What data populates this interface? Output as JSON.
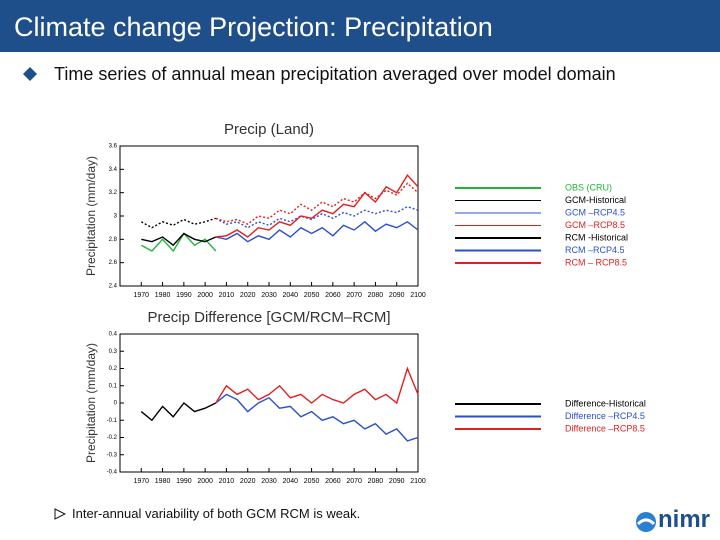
{
  "title": "Climate change Projection: Precipitation",
  "bullet": "Time series of annual mean precipitation averaged over model domain",
  "note": "Inter-annual variability of both GCM RCM is weak.",
  "logo": "nimr",
  "chart_data": [
    {
      "type": "line",
      "title": "Precip (Land)",
      "y_label": "Precipitation (mm/day)",
      "x": [
        1970,
        1975,
        1980,
        1985,
        1990,
        1995,
        2000,
        2005,
        2010,
        2015,
        2020,
        2025,
        2030,
        2035,
        2040,
        2045,
        2050,
        2055,
        2060,
        2065,
        2070,
        2075,
        2080,
        2085,
        2090,
        2095,
        2100
      ],
      "xlim": [
        1960,
        2100
      ],
      "xticks": [
        1970,
        1980,
        1990,
        2000,
        2010,
        2020,
        2030,
        2040,
        2050,
        2060,
        2070,
        2080,
        2090,
        2100
      ],
      "ylim": [
        2.4,
        3.6
      ],
      "yticks": [
        2.4,
        2.6,
        2.8,
        3,
        3.2,
        3.4,
        3.6
      ],
      "series": [
        {
          "name": "OBS (CRU)",
          "color": "#22b53a",
          "style": "solid",
          "values": [
            2.75,
            2.7,
            2.8,
            2.7,
            2.85,
            2.75,
            2.8,
            2.7,
            null,
            null,
            null,
            null,
            null,
            null,
            null,
            null,
            null,
            null,
            null,
            null,
            null,
            null,
            null,
            null,
            null,
            null,
            null
          ]
        },
        {
          "name": "GCM-Historical",
          "color": "#000000",
          "style": "dotted",
          "values": [
            2.95,
            2.9,
            2.95,
            2.92,
            2.97,
            2.93,
            2.95,
            2.98,
            null,
            null,
            null,
            null,
            null,
            null,
            null,
            null,
            null,
            null,
            null,
            null,
            null,
            null,
            null,
            null,
            null,
            null,
            null
          ]
        },
        {
          "name": "GCM –RCP4.5",
          "color": "#2a4fd0",
          "style": "dotted",
          "values": [
            null,
            null,
            null,
            null,
            null,
            null,
            null,
            2.98,
            2.93,
            2.95,
            2.9,
            2.95,
            2.92,
            2.98,
            2.95,
            3.0,
            2.97,
            3.02,
            2.98,
            3.03,
            3.0,
            3.05,
            3.02,
            3.05,
            3.03,
            3.08,
            3.05
          ]
        },
        {
          "name": "GCM –RCP8.5",
          "color": "#e02020",
          "style": "dotted",
          "values": [
            null,
            null,
            null,
            null,
            null,
            null,
            null,
            2.98,
            2.95,
            2.97,
            2.93,
            3.0,
            2.98,
            3.05,
            3.02,
            3.1,
            3.05,
            3.12,
            3.08,
            3.15,
            3.12,
            3.2,
            3.15,
            3.22,
            3.18,
            3.28,
            3.2
          ]
        },
        {
          "name": "RCM -Historical",
          "color": "#000000",
          "style": "solid",
          "values": [
            2.8,
            2.78,
            2.82,
            2.75,
            2.85,
            2.8,
            2.78,
            2.82,
            null,
            null,
            null,
            null,
            null,
            null,
            null,
            null,
            null,
            null,
            null,
            null,
            null,
            null,
            null,
            null,
            null,
            null,
            null
          ]
        },
        {
          "name": "RCM –RCP4.5",
          "color": "#2a4fd0",
          "style": "solid",
          "values": [
            null,
            null,
            null,
            null,
            null,
            null,
            null,
            2.82,
            2.8,
            2.85,
            2.78,
            2.83,
            2.8,
            2.88,
            2.82,
            2.9,
            2.85,
            2.9,
            2.83,
            2.92,
            2.88,
            2.95,
            2.87,
            2.93,
            2.9,
            2.95,
            2.88
          ]
        },
        {
          "name": "RCM – RCP8.5",
          "color": "#e02020",
          "style": "solid",
          "values": [
            null,
            null,
            null,
            null,
            null,
            null,
            null,
            2.82,
            2.83,
            2.88,
            2.82,
            2.9,
            2.88,
            2.95,
            2.92,
            3.0,
            2.98,
            3.05,
            3.02,
            3.1,
            3.08,
            3.2,
            3.12,
            3.25,
            3.2,
            3.35,
            3.25
          ]
        }
      ]
    },
    {
      "type": "line",
      "title": "Precip Difference [GCM/RCM–RCM]",
      "y_label": "Precipitation (mm/day)",
      "x": [
        1970,
        1975,
        1980,
        1985,
        1990,
        1995,
        2000,
        2005,
        2010,
        2015,
        2020,
        2025,
        2030,
        2035,
        2040,
        2045,
        2050,
        2055,
        2060,
        2065,
        2070,
        2075,
        2080,
        2085,
        2090,
        2095,
        2100
      ],
      "xlim": [
        1960,
        2100
      ],
      "xticks": [
        1970,
        1980,
        1990,
        2000,
        2010,
        2020,
        2030,
        2040,
        2050,
        2060,
        2070,
        2080,
        2090,
        2100
      ],
      "ylim": [
        -0.4,
        0.4
      ],
      "yticks": [
        -0.4,
        -0.3,
        -0.2,
        -0.1,
        0,
        0.1,
        0.2,
        0.3,
        0.4
      ],
      "series": [
        {
          "name": "Difference-Historical",
          "color": "#000000",
          "style": "solid",
          "values": [
            -0.05,
            -0.1,
            -0.02,
            -0.08,
            0.0,
            -0.05,
            -0.03,
            0.0,
            null,
            null,
            null,
            null,
            null,
            null,
            null,
            null,
            null,
            null,
            null,
            null,
            null,
            null,
            null,
            null,
            null,
            null,
            null
          ]
        },
        {
          "name": "Difference –RCP4.5",
          "color": "#2a4fd0",
          "style": "solid",
          "values": [
            null,
            null,
            null,
            null,
            null,
            null,
            null,
            0.0,
            0.05,
            0.02,
            -0.05,
            0.0,
            0.03,
            -0.03,
            -0.02,
            -0.08,
            -0.05,
            -0.1,
            -0.08,
            -0.12,
            -0.1,
            -0.15,
            -0.12,
            -0.18,
            -0.15,
            -0.22,
            -0.2
          ]
        },
        {
          "name": "Difference –RCP8.5",
          "color": "#e02020",
          "style": "solid",
          "values": [
            null,
            null,
            null,
            null,
            null,
            null,
            null,
            0.0,
            0.1,
            0.05,
            0.08,
            0.02,
            0.05,
            0.1,
            0.03,
            0.05,
            0.0,
            0.05,
            0.02,
            0.0,
            0.05,
            0.08,
            0.02,
            0.05,
            0.0,
            0.2,
            0.05
          ]
        }
      ]
    }
  ]
}
